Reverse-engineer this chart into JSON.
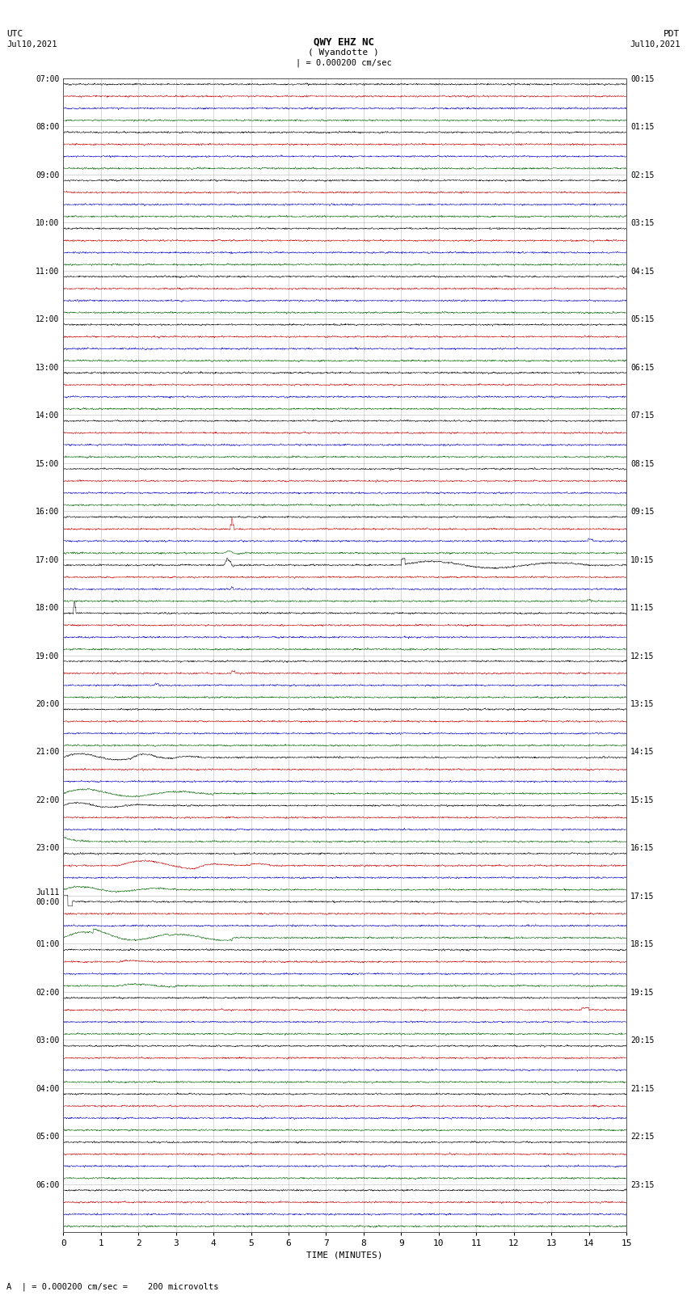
{
  "title_line1": "QWY EHZ NC",
  "title_line2": "( Wyandotte )",
  "title_scale": "| = 0.000200 cm/sec",
  "label_utc": "UTC",
  "label_pdt": "PDT",
  "date_left": "Jul10,2021",
  "date_right": "Jul10,2021",
  "xlabel": "TIME (MINUTES)",
  "footer": "A  | = 0.000200 cm/sec =    200 microvolts",
  "utc_labels": [
    "07:00",
    "08:00",
    "09:00",
    "10:00",
    "11:00",
    "12:00",
    "13:00",
    "14:00",
    "15:00",
    "16:00",
    "17:00",
    "18:00",
    "19:00",
    "20:00",
    "21:00",
    "22:00",
    "23:00",
    "Jul11\n00:00",
    "01:00",
    "02:00",
    "03:00",
    "04:00",
    "05:00",
    "06:00"
  ],
  "pdt_labels": [
    "00:15",
    "01:15",
    "02:15",
    "03:15",
    "04:15",
    "05:15",
    "06:15",
    "07:15",
    "08:15",
    "09:15",
    "10:15",
    "11:15",
    "12:15",
    "13:15",
    "14:15",
    "15:15",
    "16:15",
    "17:15",
    "18:15",
    "19:15",
    "20:15",
    "21:15",
    "22:15",
    "23:15"
  ],
  "num_hours": 24,
  "traces_per_hour": 4,
  "minutes_per_row": 15,
  "bg_color": "#ffffff",
  "grid_color": "#777777",
  "trace_colors": [
    "#000000",
    "#cc0000",
    "#0000cc",
    "#006600"
  ],
  "fig_width": 8.5,
  "fig_height": 16.13,
  "dpi": 100
}
